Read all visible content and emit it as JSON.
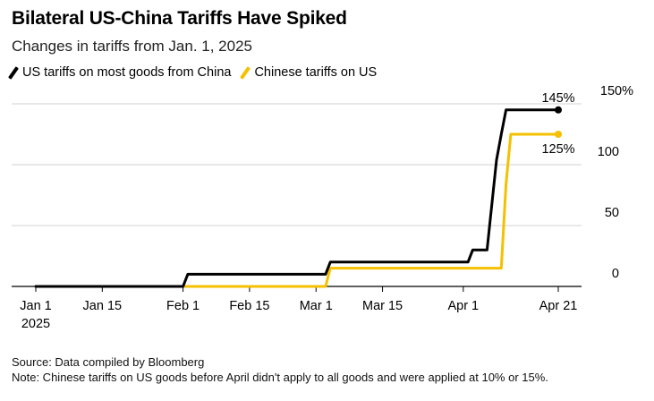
{
  "chart_data": {
    "type": "line",
    "title": "Bilateral US-China Tariffs Have Spiked",
    "subtitle": "Changes in tariffs from Jan. 1, 2025",
    "xlabel": "",
    "ylabel": "",
    "x_range": [
      "2025-01-01",
      "2025-04-21"
    ],
    "ylim": [
      0,
      150
    ],
    "y_ticks": [
      {
        "value": 0,
        "label": "0"
      },
      {
        "value": 50,
        "label": "50"
      },
      {
        "value": 100,
        "label": "100"
      },
      {
        "value": 150,
        "label": "150%"
      }
    ],
    "x_ticks": [
      {
        "date": "2025-01-01",
        "label": "Jan 1",
        "sublabel": "2025"
      },
      {
        "date": "2025-01-15",
        "label": "Jan 15"
      },
      {
        "date": "2025-02-01",
        "label": "Feb 1"
      },
      {
        "date": "2025-02-15",
        "label": "Feb 15"
      },
      {
        "date": "2025-03-01",
        "label": "Mar 1"
      },
      {
        "date": "2025-03-15",
        "label": "Mar 15"
      },
      {
        "date": "2025-04-01",
        "label": "Apr 1"
      },
      {
        "date": "2025-04-21",
        "label": "Apr 21"
      }
    ],
    "grid": "horizontal",
    "legend_position": "top-left",
    "series": [
      {
        "name": "US tariffs on most goods from China",
        "color": "#000000",
        "end_label": "145%",
        "points": [
          [
            "2025-01-01",
            0
          ],
          [
            "2025-02-01",
            0
          ],
          [
            "2025-02-02",
            10
          ],
          [
            "2025-03-03",
            10
          ],
          [
            "2025-03-04",
            20
          ],
          [
            "2025-04-02",
            20
          ],
          [
            "2025-04-03",
            30
          ],
          [
            "2025-04-06",
            30
          ],
          [
            "2025-04-08",
            104
          ],
          [
            "2025-04-09",
            125
          ],
          [
            "2025-04-10",
            145
          ],
          [
            "2025-04-21",
            145
          ]
        ]
      },
      {
        "name": "Chinese tariffs on US",
        "color": "#f5c000",
        "end_label": "125%",
        "points": [
          [
            "2025-01-01",
            0
          ],
          [
            "2025-03-03",
            0
          ],
          [
            "2025-03-04",
            15
          ],
          [
            "2025-04-09",
            15
          ],
          [
            "2025-04-10",
            84
          ],
          [
            "2025-04-11",
            125
          ],
          [
            "2025-04-21",
            125
          ]
        ]
      }
    ]
  },
  "footer": {
    "source": "Source: Data compiled by Bloomberg",
    "note": "Note: Chinese tariffs on US goods before April didn't apply to all goods and were applied at 10% or 15%."
  }
}
